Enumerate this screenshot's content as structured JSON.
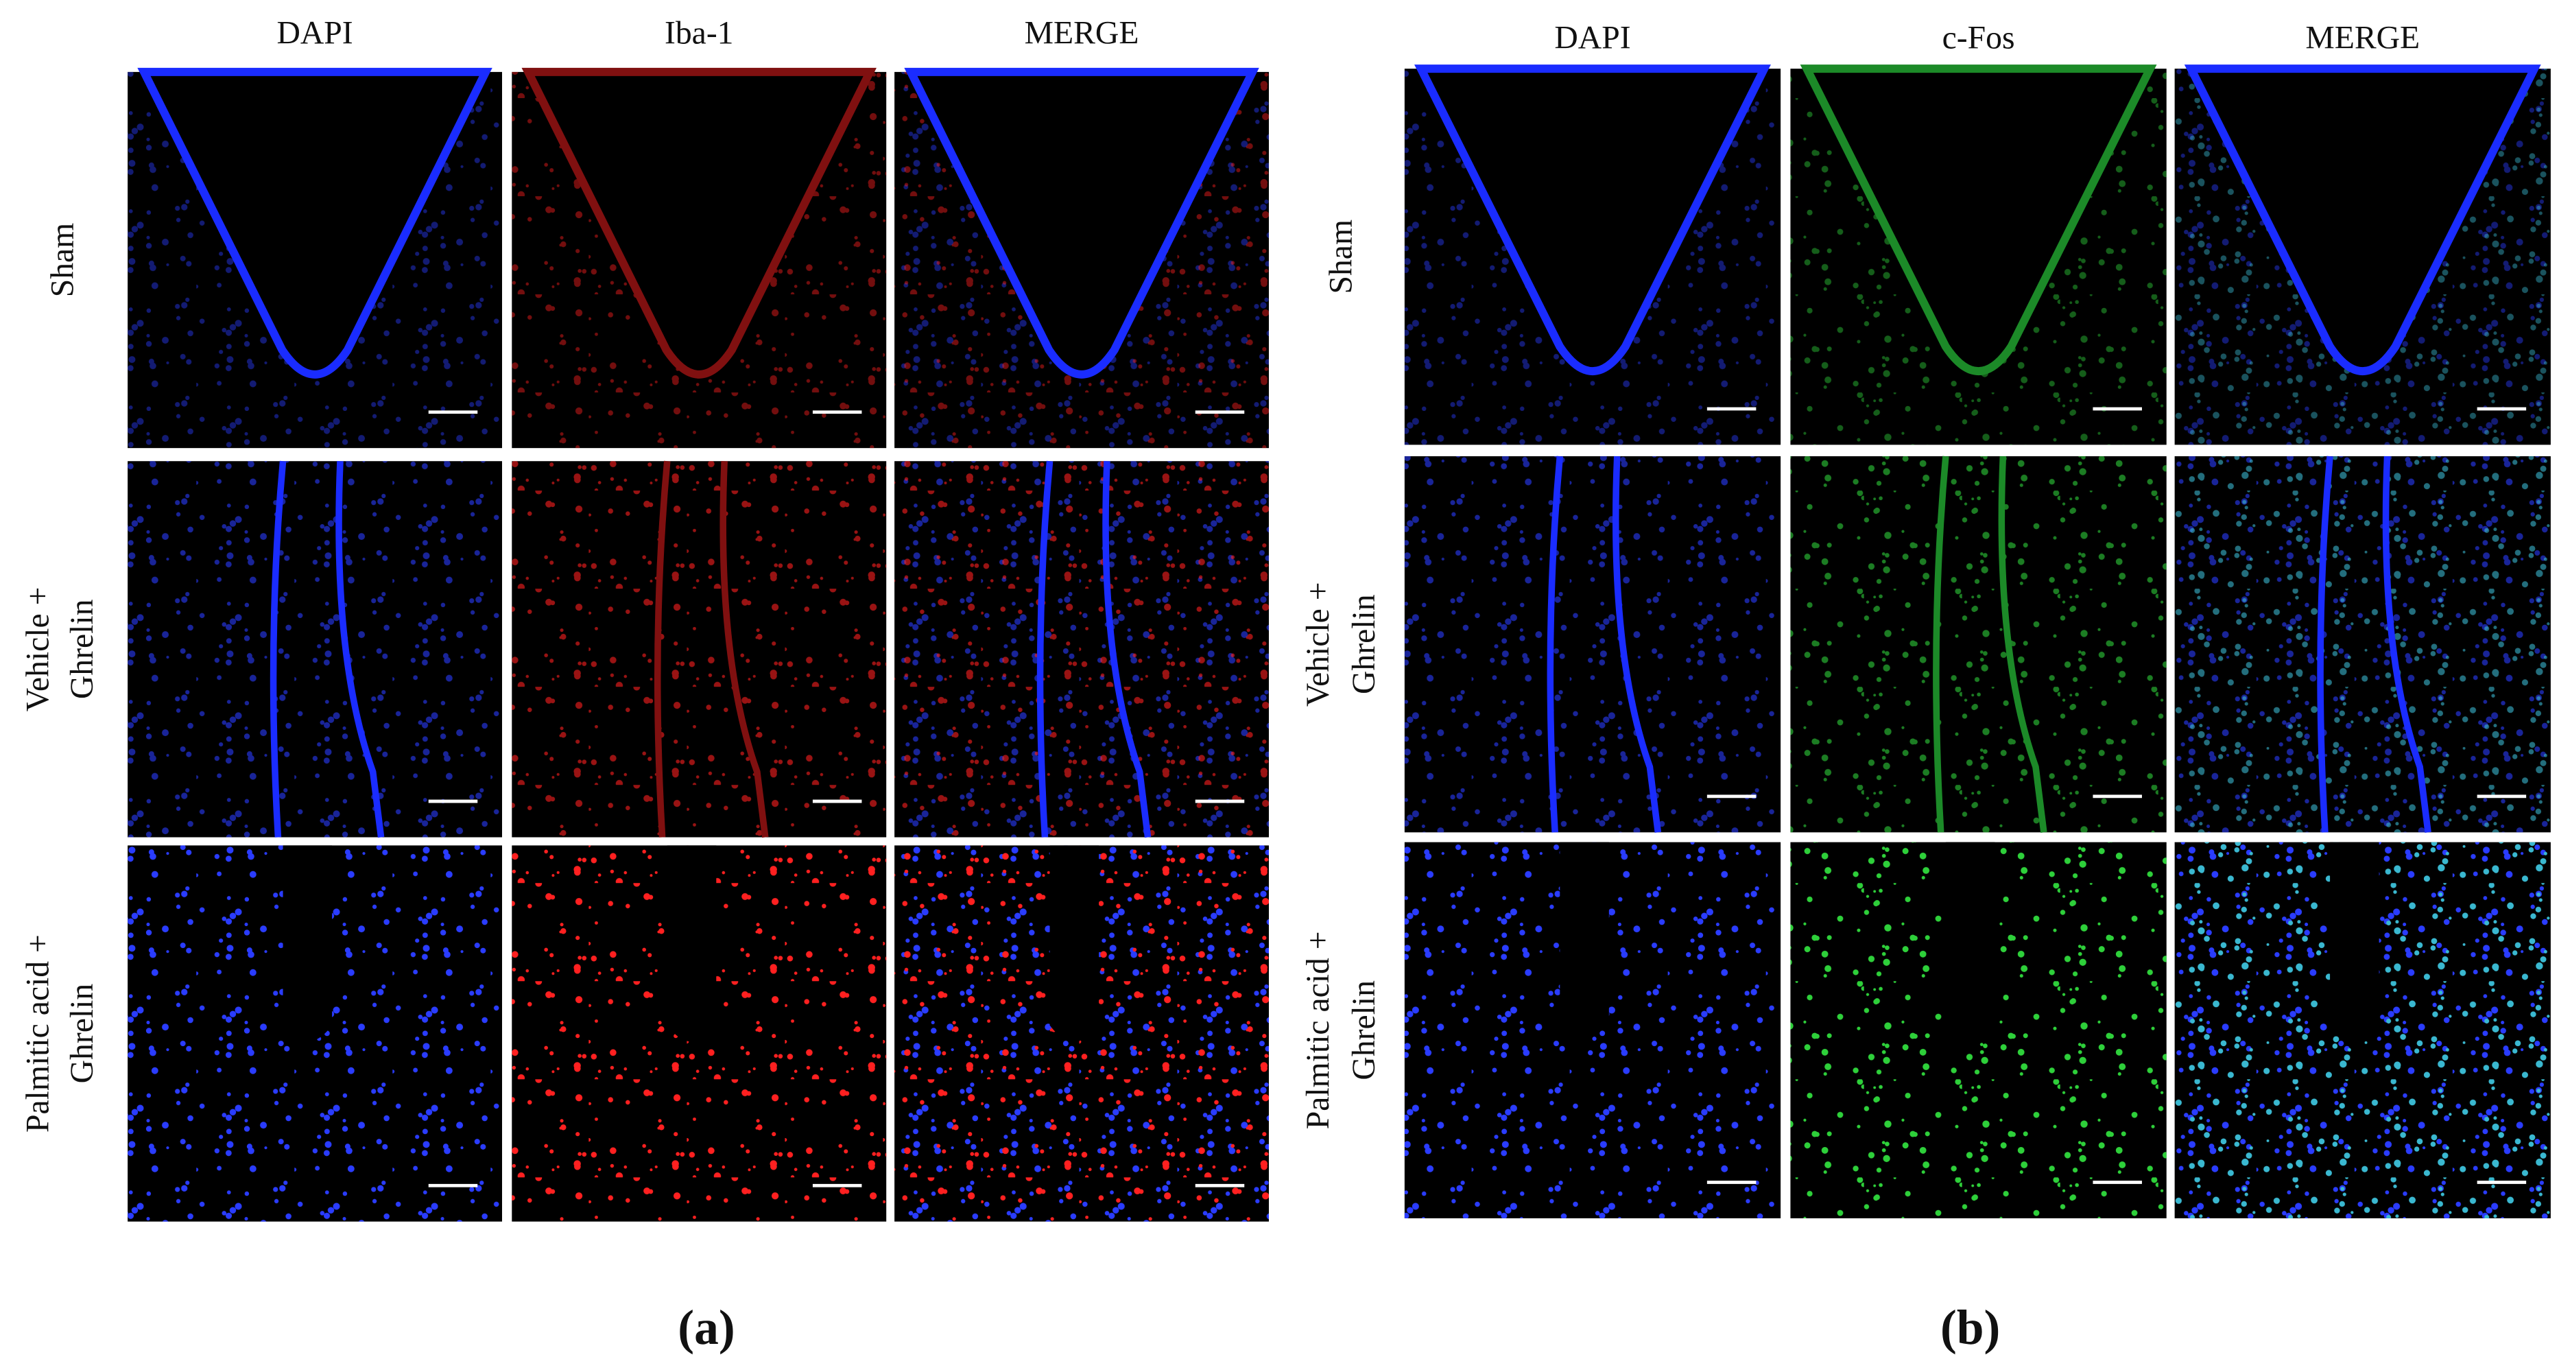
{
  "panels": [
    {
      "label": "(a)",
      "columns": [
        "DAPI",
        "Iba-1",
        "MERGE"
      ],
      "rows": [
        [
          "Sham"
        ],
        [
          "Vehicle +",
          "Ghrelin"
        ],
        [
          "Palmitic acid +",
          "Ghrelin"
        ]
      ]
    },
    {
      "label": "(b)",
      "columns": [
        "DAPI",
        "c-Fos",
        "MERGE"
      ],
      "rows": [
        [
          "Sham"
        ],
        [
          "Vehicle +",
          "Ghrelin"
        ],
        [
          "Palmitic acid +",
          "Ghrelin"
        ]
      ]
    }
  ]
}
